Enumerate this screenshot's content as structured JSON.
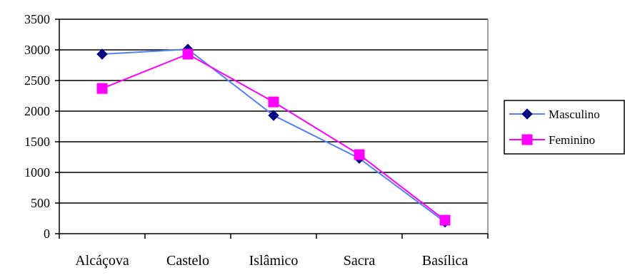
{
  "chart_data": {
    "type": "line",
    "categories": [
      "Alcáçova",
      "Castelo",
      "Islâmico",
      "Sacra",
      "Basílica"
    ],
    "series": [
      {
        "name": "Masculino",
        "values": [
          2930,
          3010,
          1930,
          1230,
          190
        ],
        "color": "#000080",
        "line_color": "#4f81ff",
        "marker": "diamond"
      },
      {
        "name": "Feminino",
        "values": [
          2370,
          2930,
          2150,
          1290,
          220
        ],
        "color": "#ff00ff",
        "line_color": "#ff00ff",
        "marker": "square"
      }
    ],
    "yticks": [
      "0",
      "500",
      "1000",
      "1500",
      "2000",
      "2500",
      "3000",
      "3500"
    ],
    "ylim": [
      0,
      3500
    ],
    "grid": true,
    "legend_position": "right"
  }
}
